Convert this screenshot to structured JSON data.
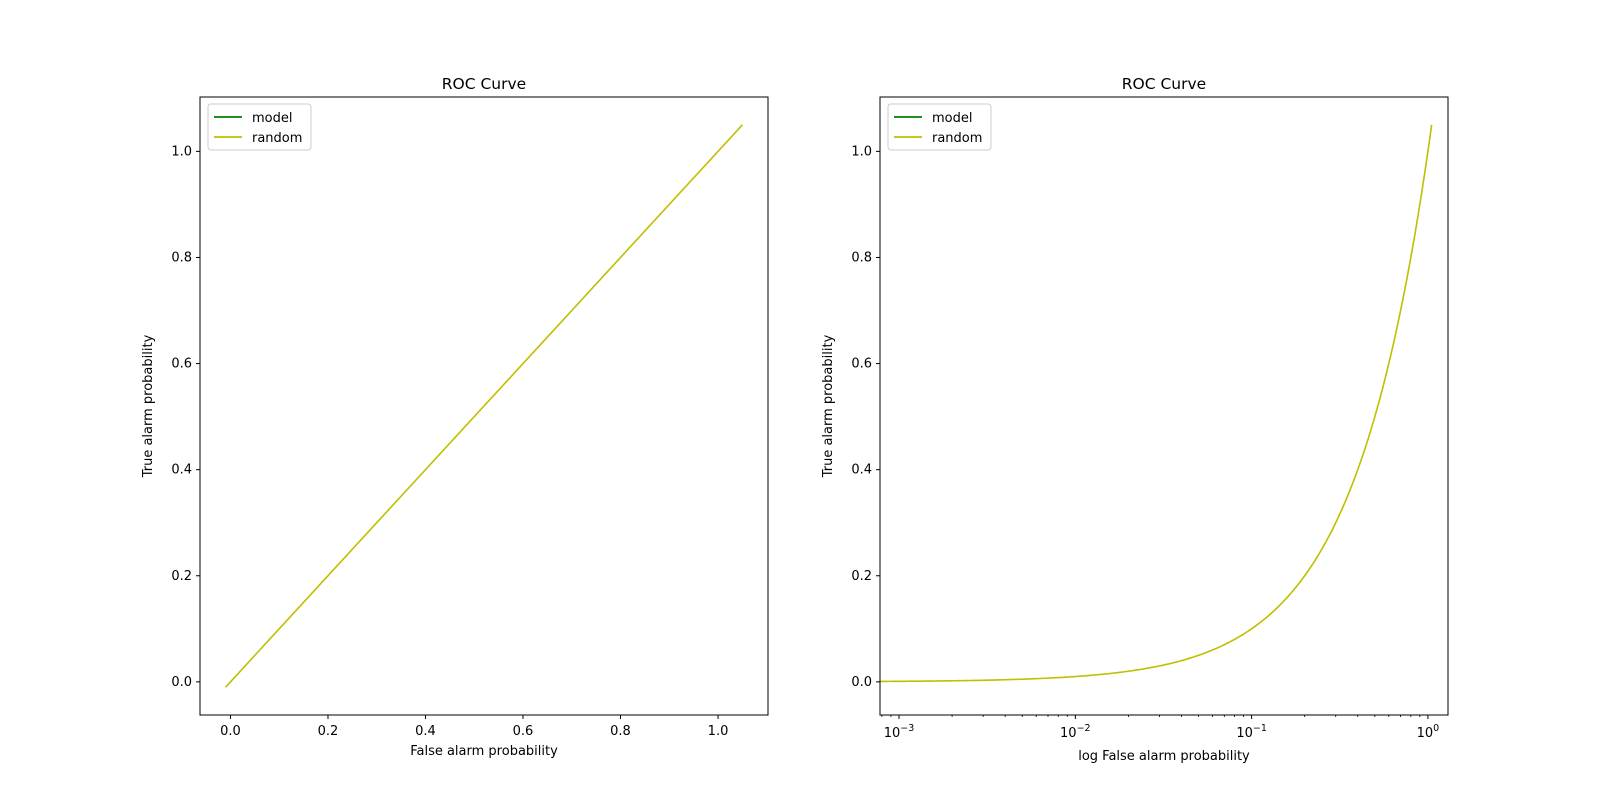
{
  "chart_data": [
    {
      "type": "line",
      "title": "ROC Curve",
      "xlabel": "False alarm probability",
      "ylabel": "True alarm probability",
      "xscale": "linear",
      "xlim": [
        -0.0625,
        1.1025
      ],
      "ylim": [
        -0.0625,
        1.1025
      ],
      "xticks": [
        0.0,
        0.2,
        0.4,
        0.6,
        0.8,
        1.0
      ],
      "xtick_labels": [
        "0.0",
        "0.2",
        "0.4",
        "0.6",
        "0.8",
        "1.0"
      ],
      "yticks": [
        0.0,
        0.2,
        0.4,
        0.6,
        0.8,
        1.0
      ],
      "ytick_labels": [
        "0.0",
        "0.2",
        "0.4",
        "0.6",
        "0.8",
        "1.0"
      ],
      "grid": false,
      "legend": "upper-left",
      "series": [
        {
          "name": "model",
          "color": "#008000",
          "x": [],
          "y": []
        },
        {
          "name": "random",
          "color": "#bfbf00",
          "x": [
            -0.01,
            1.05
          ],
          "y": [
            -0.01,
            1.05
          ]
        }
      ]
    },
    {
      "type": "line",
      "title": "ROC Curve",
      "xlabel": "log False alarm probability",
      "ylabel": "True alarm probability",
      "xscale": "log",
      "xlim": [
        0.00078,
        1.3
      ],
      "ylim": [
        -0.0625,
        1.1025
      ],
      "xticks": [
        0.001,
        0.01,
        0.1,
        1
      ],
      "xtick_labels": [
        {
          "base": "10",
          "exp": "−3"
        },
        {
          "base": "10",
          "exp": "−2"
        },
        {
          "base": "10",
          "exp": "−1"
        },
        {
          "base": "10",
          "exp": "0"
        }
      ],
      "yticks": [
        0.0,
        0.2,
        0.4,
        0.6,
        0.8,
        1.0
      ],
      "ytick_labels": [
        "0.0",
        "0.2",
        "0.4",
        "0.6",
        "0.8",
        "1.0"
      ],
      "grid": false,
      "legend": "upper-left",
      "series": [
        {
          "name": "model",
          "color": "#008000",
          "x": [],
          "y": []
        },
        {
          "name": "random",
          "color": "#bfbf00",
          "x": [
            0.00078,
            0.001,
            0.002,
            0.005,
            0.01,
            0.02,
            0.03,
            0.05,
            0.07,
            0.1,
            0.15,
            0.2,
            0.3,
            0.4,
            0.5,
            0.6,
            0.7,
            0.8,
            0.9,
            1.0,
            1.05
          ],
          "y": [
            0.00078,
            0.001,
            0.002,
            0.005,
            0.01,
            0.02,
            0.03,
            0.05,
            0.07,
            0.1,
            0.15,
            0.2,
            0.3,
            0.4,
            0.5,
            0.6,
            0.7,
            0.8,
            0.9,
            1.0,
            1.05
          ]
        }
      ]
    }
  ]
}
